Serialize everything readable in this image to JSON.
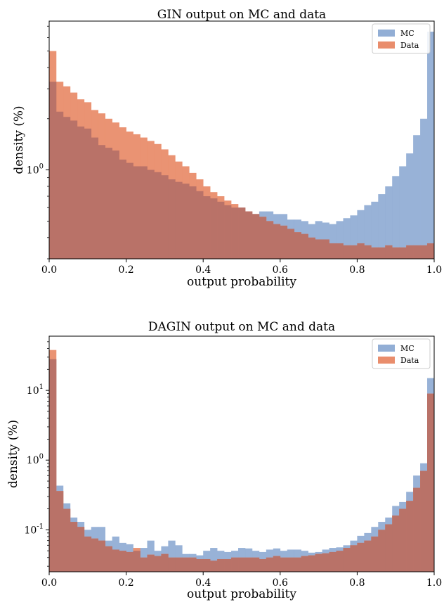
{
  "chart_data": [
    {
      "type": "bar",
      "title": "GIN output on MC and data",
      "xlabel": "output probability",
      "ylabel": "density (%)",
      "yscale": "log",
      "xlim": [
        0,
        1
      ],
      "ylim": [
        0.3,
        7.5
      ],
      "x_ticks": [
        0.0,
        0.2,
        0.4,
        0.6,
        0.8,
        1.0
      ],
      "x_tick_labels": [
        "0.0",
        "0.2",
        "0.4",
        "0.6",
        "0.8",
        "1.0"
      ],
      "y_ticks": [
        1
      ],
      "y_tick_labels": [
        "10^0"
      ],
      "legend": {
        "position": "upper-right",
        "entries": [
          "MC",
          "Data"
        ]
      },
      "bin_width": 0.02,
      "series": [
        {
          "name": "MC",
          "color": "#92aed5",
          "values": [
            3.3,
            2.2,
            2.05,
            1.95,
            1.8,
            1.75,
            1.55,
            1.4,
            1.35,
            1.3,
            1.15,
            1.1,
            1.05,
            1.05,
            1.0,
            0.97,
            0.93,
            0.88,
            0.85,
            0.83,
            0.8,
            0.75,
            0.7,
            0.68,
            0.65,
            0.62,
            0.6,
            0.6,
            0.57,
            0.55,
            0.57,
            0.57,
            0.55,
            0.55,
            0.51,
            0.51,
            0.5,
            0.48,
            0.5,
            0.49,
            0.48,
            0.5,
            0.52,
            0.54,
            0.58,
            0.62,
            0.65,
            0.72,
            0.8,
            0.92,
            1.05,
            1.25,
            1.6,
            2.0,
            6.5
          ]
        },
        {
          "name": "Data",
          "color": "#e98d6c",
          "values": [
            5.0,
            3.3,
            3.1,
            2.85,
            2.6,
            2.5,
            2.25,
            2.15,
            2.0,
            1.9,
            1.78,
            1.68,
            1.62,
            1.55,
            1.48,
            1.42,
            1.32,
            1.22,
            1.12,
            1.05,
            0.96,
            0.88,
            0.8,
            0.74,
            0.7,
            0.66,
            0.63,
            0.6,
            0.57,
            0.55,
            0.53,
            0.5,
            0.48,
            0.47,
            0.45,
            0.43,
            0.42,
            0.4,
            0.39,
            0.39,
            0.37,
            0.37,
            0.36,
            0.36,
            0.37,
            0.36,
            0.35,
            0.35,
            0.36,
            0.35,
            0.35,
            0.36,
            0.36,
            0.36,
            0.37
          ]
        }
      ]
    },
    {
      "type": "bar",
      "title": "DAGIN output on MC and data",
      "xlabel": "output probability",
      "ylabel": "density (%)",
      "yscale": "log",
      "xlim": [
        0,
        1
      ],
      "ylim": [
        0.025,
        60
      ],
      "x_ticks": [
        0.0,
        0.2,
        0.4,
        0.6,
        0.8,
        1.0
      ],
      "x_tick_labels": [
        "0.0",
        "0.2",
        "0.4",
        "0.6",
        "0.8",
        "1.0"
      ],
      "y_ticks": [
        0.1,
        1,
        10
      ],
      "y_tick_labels": [
        "10^-1",
        "10^0",
        "10^1"
      ],
      "legend": {
        "position": "upper-right",
        "entries": [
          "MC",
          "Data"
        ]
      },
      "bin_width": 0.02,
      "series": [
        {
          "name": "MC",
          "color": "#92aed5",
          "values": [
            28,
            0.43,
            0.24,
            0.15,
            0.13,
            0.1,
            0.11,
            0.11,
            0.07,
            0.08,
            0.065,
            0.062,
            0.05,
            0.055,
            0.07,
            0.05,
            0.058,
            0.07,
            0.06,
            0.045,
            0.045,
            0.043,
            0.05,
            0.055,
            0.05,
            0.048,
            0.05,
            0.055,
            0.054,
            0.05,
            0.048,
            0.052,
            0.054,
            0.05,
            0.052,
            0.052,
            0.05,
            0.047,
            0.048,
            0.052,
            0.055,
            0.056,
            0.06,
            0.07,
            0.082,
            0.09,
            0.11,
            0.13,
            0.15,
            0.22,
            0.25,
            0.35,
            0.6,
            0.9,
            15
          ]
        },
        {
          "name": "Data",
          "color": "#e98d6c",
          "values": [
            38,
            0.36,
            0.2,
            0.13,
            0.11,
            0.08,
            0.075,
            0.07,
            0.058,
            0.052,
            0.05,
            0.048,
            0.055,
            0.04,
            0.044,
            0.042,
            0.045,
            0.04,
            0.04,
            0.04,
            0.04,
            0.038,
            0.038,
            0.036,
            0.038,
            0.038,
            0.04,
            0.04,
            0.04,
            0.04,
            0.038,
            0.04,
            0.042,
            0.04,
            0.04,
            0.04,
            0.042,
            0.043,
            0.045,
            0.046,
            0.048,
            0.05,
            0.055,
            0.06,
            0.065,
            0.07,
            0.08,
            0.1,
            0.12,
            0.16,
            0.2,
            0.26,
            0.4,
            0.7,
            9
          ]
        }
      ]
    }
  ]
}
